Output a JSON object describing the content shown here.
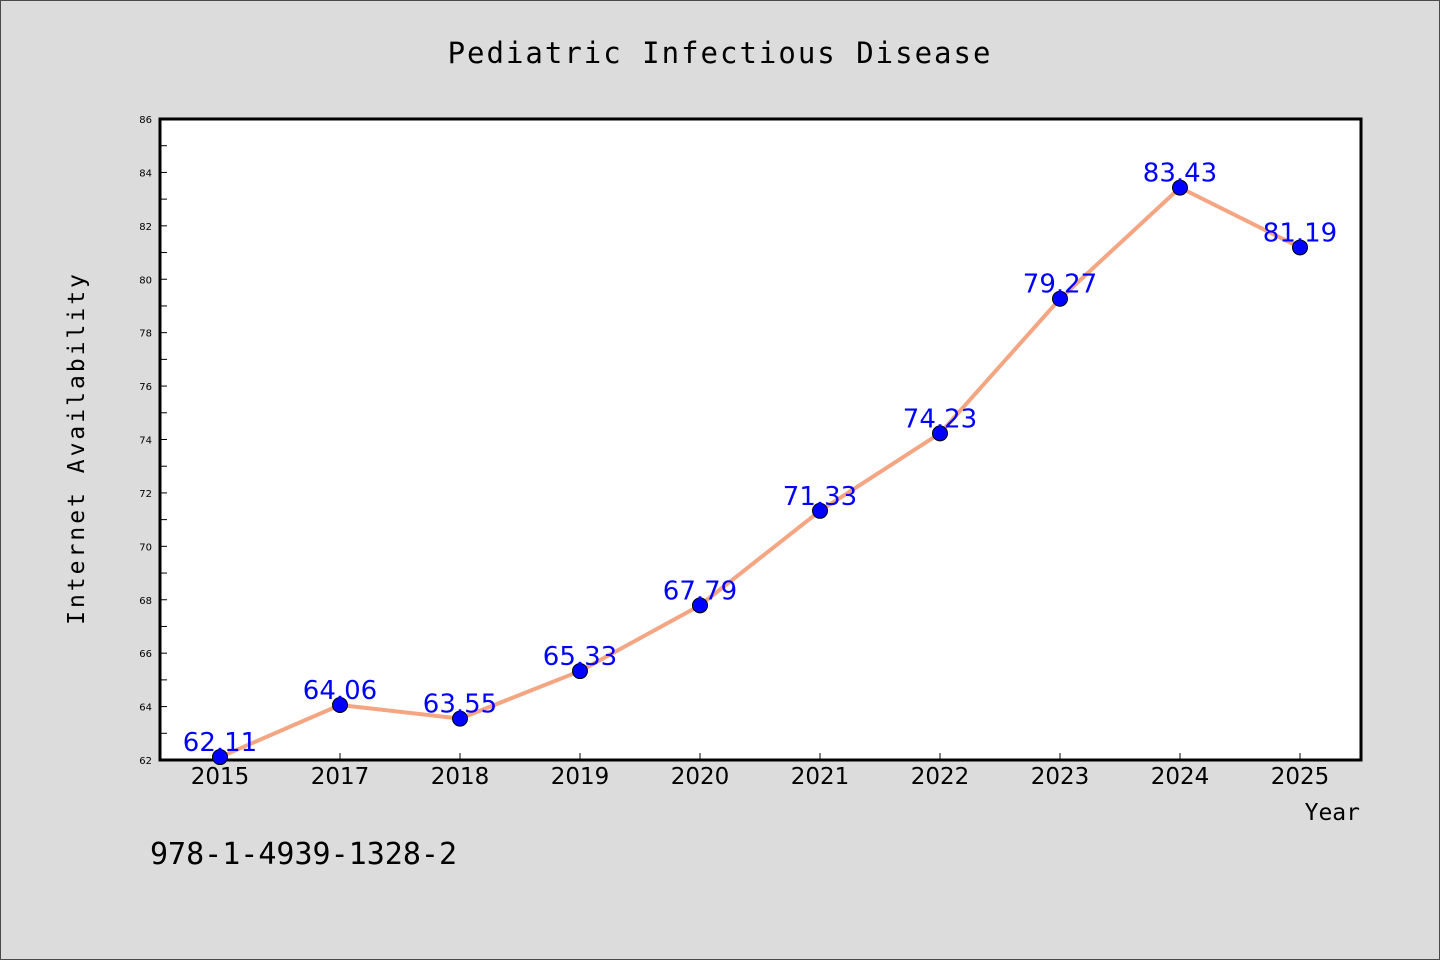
{
  "chart_data": {
    "type": "line",
    "title": "Pediatric Infectious Disease",
    "xlabel": "Year",
    "ylabel": "Internet Availability",
    "categories": [
      "2015",
      "2017",
      "2018",
      "2019",
      "2020",
      "2021",
      "2022",
      "2023",
      "2024",
      "2025"
    ],
    "series": [
      {
        "values": [
          62.11,
          64.06,
          63.55,
          65.33,
          67.79,
          71.33,
          74.23,
          79.27,
          83.43,
          81.19
        ]
      }
    ],
    "ylim": [
      62,
      86
    ],
    "yticks": [
      62,
      64,
      66,
      68,
      70,
      72,
      74,
      76,
      78,
      80,
      82,
      84,
      86
    ],
    "grid": false,
    "legend": "none",
    "line_color": "#f4a582",
    "marker_color": "#0000ff",
    "label_color": "#0000ff"
  },
  "footer": {
    "isbn": "978-1-4939-1328-2"
  }
}
